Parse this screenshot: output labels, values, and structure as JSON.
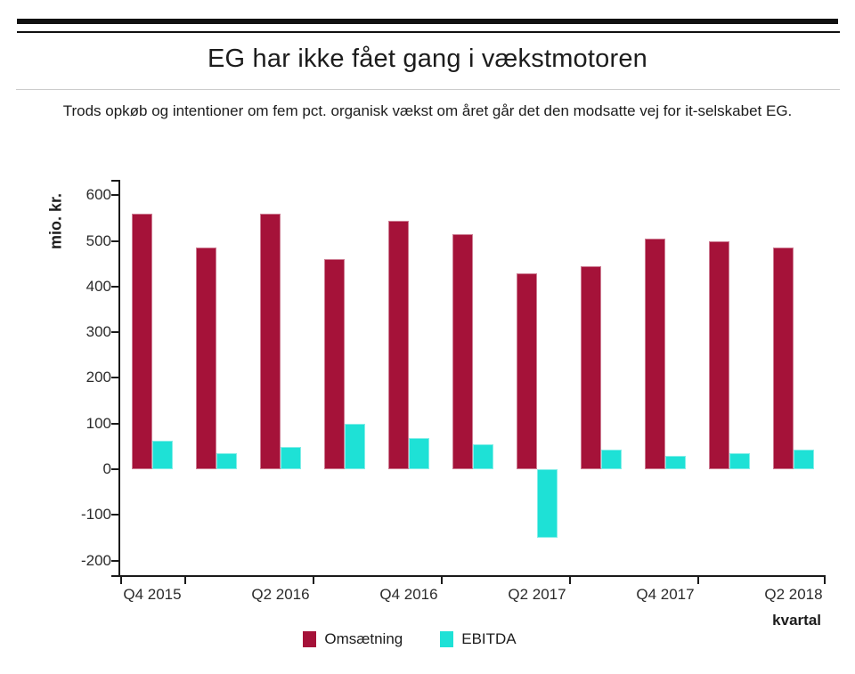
{
  "header": {
    "title": "EG har ikke fået gang i vækstmotoren",
    "subtitle": "Trods opkøb og intentioner om fem pct. organisk vækst om året går det den modsatte vej for it-selskabet EG."
  },
  "chart_data": {
    "type": "bar",
    "title": "",
    "xlabel": "kvartal",
    "ylabel": "mio. kr.",
    "ylim": [
      -236,
      634
    ],
    "yticks": [
      600,
      500,
      400,
      300,
      200,
      100,
      0,
      -100,
      -200
    ],
    "grid": false,
    "legend_position": "bottom",
    "categories": [
      "Q4 2015",
      "Q1 2016",
      "Q2 2016",
      "Q3 2016",
      "Q4 2016",
      "Q1 2017",
      "Q2 2017",
      "Q3 2017",
      "Q4 2017",
      "Q1 2018",
      "Q2 2018"
    ],
    "xtick_labels_shown": [
      "Q4 2015",
      "Q2 2016",
      "Q4 2016",
      "Q2 2017",
      "Q4 2017",
      "Q2 2018"
    ],
    "series": [
      {
        "name": "Omsætning",
        "color": "#A51239",
        "values": [
          560,
          485,
          560,
          460,
          545,
          515,
          430,
          445,
          505,
          500,
          485
        ]
      },
      {
        "name": "EBITDA",
        "color": "#1EE1D6",
        "values": [
          62,
          35,
          49,
          100,
          68,
          55,
          -150,
          43,
          30,
          36,
          43
        ]
      }
    ]
  }
}
